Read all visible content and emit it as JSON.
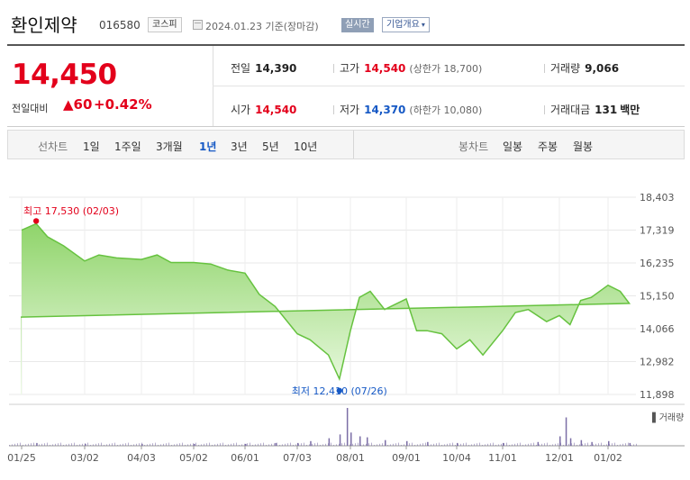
{
  "header": {
    "company_name": "환인제약",
    "code": "016580",
    "market_badge": "코스피",
    "date_text": "2024.01.23 기준(장마감)",
    "realtime_label": "실시간",
    "company_info_label": "기업개요",
    "company_info_caret": "▾"
  },
  "quote": {
    "price": "14,450",
    "change_label": "전일대비",
    "change_value": "▲60",
    "change_pct": "+0.42%",
    "prev_close_label": "전일",
    "prev_close": "14,390",
    "open_label": "시가",
    "open": "14,540",
    "high_label": "고가",
    "high": "14,540",
    "upper_limit": "(상한가 18,700)",
    "low_label": "저가",
    "low": "14,370",
    "lower_limit": "(하한가 10,080)",
    "volume_label": "거래량",
    "volume": "9,066",
    "amount_label": "거래대금",
    "amount": "131",
    "amount_unit": "백만",
    "colors": {
      "up": "#e3001b",
      "down": "#1659c5"
    }
  },
  "tabs": {
    "period_label": "선차트",
    "periods": [
      "1일",
      "1주일",
      "3개월",
      "1년",
      "3년",
      "5년",
      "10년"
    ],
    "active_period": "1년",
    "candle_label": "봉차트",
    "candles": [
      "일봉",
      "주봉",
      "월봉"
    ]
  },
  "chart_data": {
    "type": "area",
    "y_ticks": [
      "18,403",
      "17,319",
      "16,235",
      "15,150",
      "14,066",
      "12,982",
      "11,898"
    ],
    "ylim": [
      11898,
      18403
    ],
    "x_tick_labels": [
      "01/25",
      "03/02",
      "04/03",
      "05/02",
      "06/01",
      "07/03",
      "08/01",
      "09/01",
      "10/04",
      "11/01",
      "12/01",
      "01/02"
    ],
    "x": [
      "01/25",
      "02/03",
      "02/10",
      "02/20",
      "03/02",
      "03/10",
      "03/20",
      "04/03",
      "04/12",
      "04/20",
      "05/02",
      "05/12",
      "05/22",
      "06/01",
      "06/10",
      "06/20",
      "07/03",
      "07/10",
      "07/20",
      "07/26",
      "08/01",
      "08/06",
      "08/12",
      "08/20",
      "09/01",
      "09/08",
      "09/15",
      "09/25",
      "10/04",
      "10/12",
      "10/20",
      "11/01",
      "11/08",
      "11/15",
      "11/25",
      "12/01",
      "12/08",
      "12/15",
      "12/22",
      "01/02",
      "01/10",
      "01/16",
      "01/23"
    ],
    "series": [
      {
        "values": [
          17320,
          17530,
          17100,
          16800,
          16300,
          16500,
          16400,
          16350,
          16500,
          16250,
          16250,
          16200,
          16000,
          15900,
          15200,
          14800,
          13900,
          13700,
          13200,
          12410,
          14000,
          15100,
          15300,
          14700,
          15050,
          14000,
          14000,
          13900,
          13400,
          13700,
          13200,
          14000,
          14600,
          14700,
          14300,
          14500,
          14200,
          15000,
          15100,
          15500,
          15300,
          14900,
          14450
        ]
      }
    ],
    "annotations": {
      "high_label": "최고 17,530 (02/03)",
      "low_label": "최저 12,410 (07/26)",
      "high_color": "#e3001b",
      "low_color": "#1659c5"
    },
    "fill_top_color": "#8fd46a",
    "fill_bottom_color": "#eefbe6",
    "line_color": "#66c23f",
    "volume_label": "거래량",
    "volume_color": "#7b6ea6",
    "volume_x": [
      "02/03",
      "03/02",
      "04/03",
      "05/02",
      "06/01",
      "06/20",
      "07/03",
      "07/10",
      "07/20",
      "07/26",
      "07/30",
      "08/01",
      "08/06",
      "08/10",
      "08/20",
      "09/01",
      "09/15",
      "10/04",
      "11/01",
      "11/20",
      "12/01",
      "12/05",
      "12/08",
      "12/15",
      "12/22",
      "01/02",
      "01/16"
    ],
    "volume_values": [
      3,
      2,
      2,
      2,
      2,
      3,
      3,
      5,
      8,
      12,
      40,
      14,
      10,
      9,
      6,
      5,
      4,
      3,
      3,
      4,
      10,
      30,
      8,
      6,
      4,
      5,
      3
    ],
    "volume_max": 40,
    "grid": true
  }
}
